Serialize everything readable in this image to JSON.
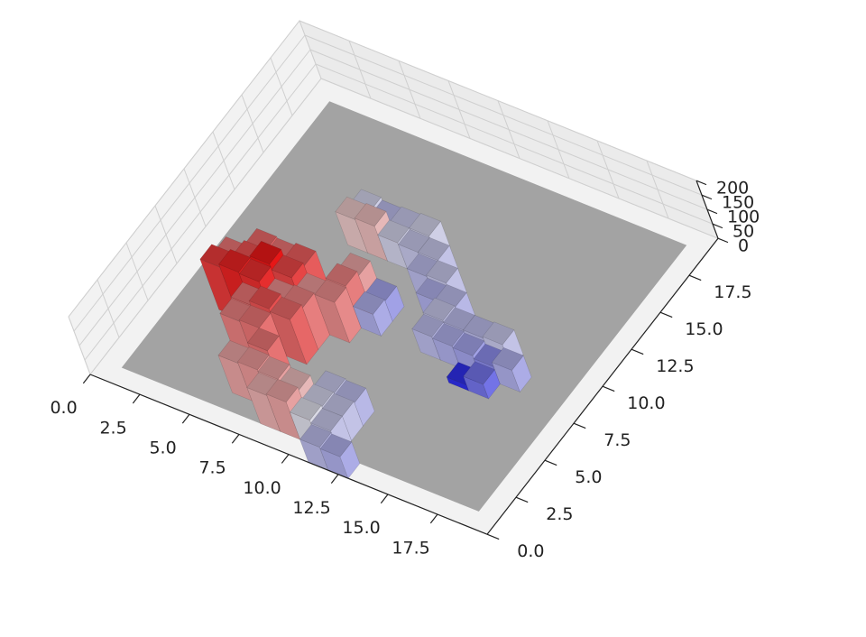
{
  "chart_data": {
    "type": "bar3d",
    "x": [
      3,
      4,
      4,
      5,
      3,
      4,
      5,
      5,
      6,
      6,
      5,
      6,
      6,
      7,
      7,
      5,
      6,
      7,
      8,
      8,
      6,
      7,
      7,
      8,
      8,
      9,
      9,
      10,
      10,
      11,
      11,
      12,
      10,
      11,
      11,
      6,
      6,
      7,
      7,
      8,
      9,
      9,
      10,
      10,
      11,
      8,
      11,
      12,
      12,
      9,
      9,
      8,
      12,
      13,
      13,
      14,
      14,
      15,
      15,
      16,
      15,
      14
    ],
    "y": [
      7,
      7,
      8,
      8,
      6,
      6,
      6,
      7,
      7,
      8,
      5,
      5,
      6,
      6,
      7,
      4,
      4,
      5,
      7,
      8,
      2,
      2,
      3,
      2,
      1,
      1,
      2,
      1,
      2,
      1,
      0,
      0,
      3,
      3,
      2,
      13,
      12,
      12,
      13,
      13,
      13,
      12,
      12,
      11,
      11,
      12,
      10,
      10,
      9,
      9,
      8,
      9,
      8,
      8,
      9,
      8,
      7,
      7,
      8,
      8,
      9,
      9
    ],
    "z": [
      150,
      165,
      155,
      150,
      175,
      185,
      180,
      190,
      170,
      160,
      150,
      165,
      140,
      145,
      135,
      145,
      150,
      155,
      140,
      145,
      130,
      135,
      150,
      130,
      125,
      130,
      120,
      95,
      90,
      85,
      80,
      75,
      85,
      80,
      85,
      90,
      115,
      120,
      80,
      85,
      90,
      85,
      85,
      80,
      85,
      90,
      75,
      80,
      85,
      70,
      75,
      130,
      80,
      75,
      80,
      70,
      20,
      50,
      60,
      75,
      85,
      80
    ],
    "colormap": "bwr",
    "xlim": [
      0,
      20
    ],
    "ylim": [
      0,
      20
    ],
    "zlim": [
      0,
      200
    ],
    "xticks": [
      {
        "value": 0,
        "label": "0.0"
      },
      {
        "value": 2.5,
        "label": "2.5"
      },
      {
        "value": 5,
        "label": "5.0"
      },
      {
        "value": 7.5,
        "label": "7.5"
      },
      {
        "value": 10,
        "label": "10.0"
      },
      {
        "value": 12.5,
        "label": "12.5"
      },
      {
        "value": 15,
        "label": "15.0"
      },
      {
        "value": 17.5,
        "label": "17.5"
      }
    ],
    "yticks": [
      {
        "value": 0,
        "label": "0.0"
      },
      {
        "value": 2.5,
        "label": "2.5"
      },
      {
        "value": 5,
        "label": "5.0"
      },
      {
        "value": 7.5,
        "label": "7.5"
      },
      {
        "value": 10,
        "label": "10.0"
      },
      {
        "value": 12.5,
        "label": "12.5"
      },
      {
        "value": 15,
        "label": "15.0"
      },
      {
        "value": 17.5,
        "label": "17.5"
      }
    ],
    "zticks": [
      0,
      50,
      100,
      150,
      200
    ],
    "grid": true
  }
}
